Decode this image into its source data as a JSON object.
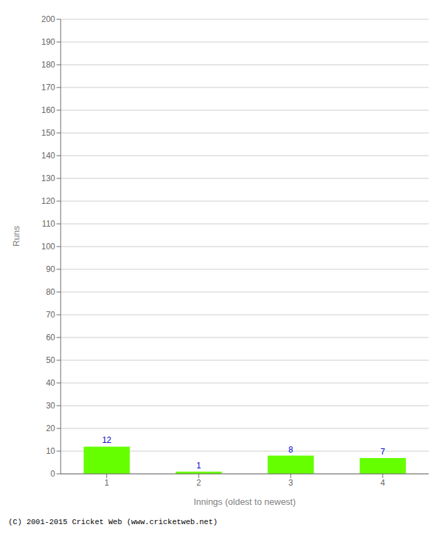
{
  "chart_data": {
    "type": "bar",
    "categories": [
      "1",
      "2",
      "3",
      "4"
    ],
    "values": [
      12,
      1,
      8,
      7
    ],
    "color": "#66ff00",
    "xlabel": "Innings (oldest to newest)",
    "ylabel": "Runs",
    "ylim": [
      0,
      200
    ],
    "yticks": [
      0,
      10,
      20,
      30,
      40,
      50,
      60,
      70,
      80,
      90,
      100,
      110,
      120,
      130,
      140,
      150,
      160,
      170,
      180,
      190,
      200
    ],
    "grid": true,
    "data_labels": true,
    "annotations": [
      "(C) 2001-2015 Cricket Web (www.cricketweb.net)"
    ]
  }
}
